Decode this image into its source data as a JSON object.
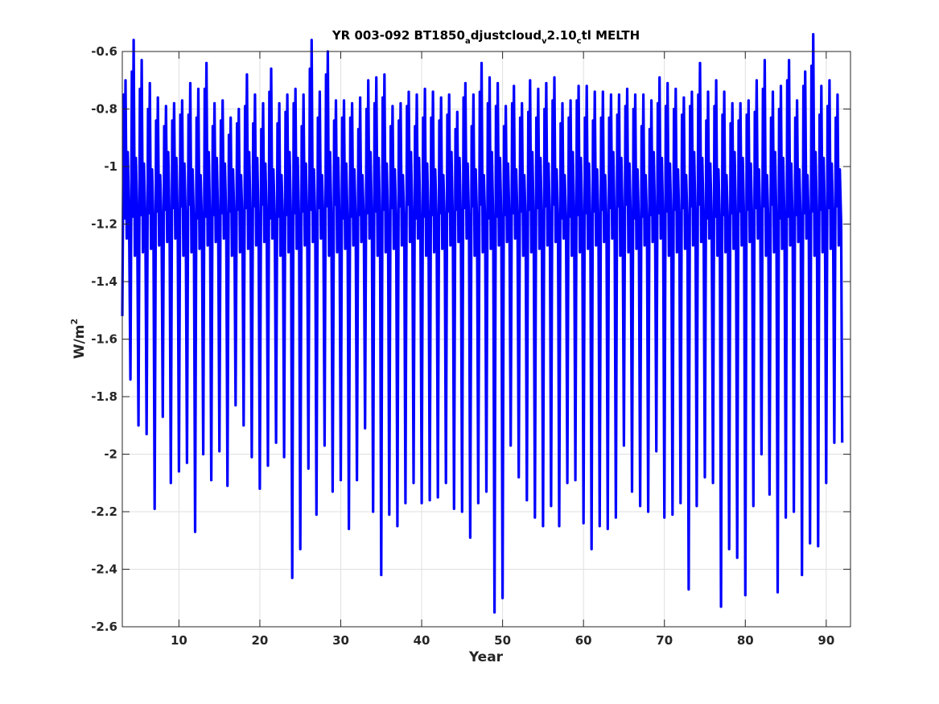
{
  "chart_data": {
    "type": "line",
    "title": {
      "part1": "YR 003-092 BT1850",
      "sub1": "a",
      "part2": "djustcloud",
      "sub2": "v",
      "part3": "2.10",
      "sub3": "c",
      "part4": "tl MELTH"
    },
    "xlabel": "Year",
    "ylabel": {
      "base": "W/m",
      "sup": "2"
    },
    "xlim": [
      3,
      93
    ],
    "ylim": [
      -2.6,
      -0.6
    ],
    "xticks": [
      10,
      20,
      30,
      40,
      50,
      60,
      70,
      80,
      90
    ],
    "xtick_labels": [
      "10",
      "20",
      "30",
      "40",
      "50",
      "60",
      "70",
      "80",
      "90"
    ],
    "yticks": [
      -2.6,
      -2.4,
      -2.2,
      -2.0,
      -1.8,
      -1.6,
      -1.4,
      -1.2,
      -1.0,
      -0.8,
      -0.6
    ],
    "ytick_labels": [
      "-2.6",
      "-2.4",
      "-2.2",
      "-2",
      "-1.8",
      "-1.6",
      "-1.4",
      "-1.2",
      "-1",
      "-0.8",
      "-0.6"
    ],
    "grid": true,
    "line_color": "#0000ff",
    "series": [
      {
        "description": "Monthly values, one annual cycle per year: summer minimum then winter peak",
        "start_year": 3,
        "annual_minima": [
          -1.52,
          -1.74,
          -1.9,
          -1.93,
          -2.19,
          -1.87,
          -2.1,
          -2.06,
          -2.03,
          -2.27,
          -2.0,
          -2.09,
          -1.99,
          -2.11,
          -1.83,
          -1.9,
          -2.01,
          -2.12,
          -2.04,
          -1.96,
          -2.01,
          -2.43,
          -2.33,
          -2.05,
          -2.21,
          -1.97,
          -2.13,
          -2.09,
          -2.26,
          -2.09,
          -1.91,
          -2.2,
          -2.42,
          -2.21,
          -2.25,
          -2.17,
          -2.1,
          -2.17,
          -2.16,
          -2.15,
          -2.1,
          -2.19,
          -2.2,
          -2.29,
          -2.17,
          -2.13,
          -2.55,
          -2.5,
          -1.97,
          -2.08,
          -2.16,
          -2.22,
          -2.25,
          -2.18,
          -2.25,
          -2.1,
          -2.09,
          -2.24,
          -2.33,
          -2.25,
          -2.26,
          -2.22,
          -1.97,
          -2.13,
          -2.18,
          -2.2,
          -1.99,
          -2.22,
          -2.21,
          -2.17,
          -2.47,
          -2.18,
          -2.08,
          -2.1,
          -2.53,
          -2.33,
          -2.36,
          -2.49,
          -2.18,
          -2.0,
          -2.14,
          -2.48,
          -2.22,
          -2.2,
          -2.42,
          -2.31,
          -2.32,
          -2.1,
          -1.96
        ],
        "annual_maxima": [
          -0.75,
          -0.67,
          -0.73,
          -0.8,
          -0.84,
          -0.86,
          -0.84,
          -0.82,
          -0.82,
          -0.83,
          -0.73,
          -0.86,
          -0.84,
          -0.89,
          -0.85,
          -0.79,
          -0.85,
          -0.87,
          -0.74,
          -0.85,
          -0.81,
          -0.78,
          -0.86,
          -0.66,
          -0.83,
          -0.68,
          -0.84,
          -0.83,
          -0.83,
          -0.87,
          -0.8,
          -0.78,
          -0.76,
          -0.86,
          -0.84,
          -0.79,
          -0.86,
          -0.83,
          -0.83,
          -0.84,
          -0.82,
          -0.87,
          -0.76,
          -0.86,
          -0.74,
          -0.78,
          -0.79,
          -0.86,
          -0.78,
          -0.83,
          -0.81,
          -0.83,
          -0.8,
          -0.77,
          -0.85,
          -0.83,
          -0.77,
          -0.83,
          -0.84,
          -0.83,
          -0.83,
          -0.82,
          -0.79,
          -0.8,
          -0.86,
          -0.87,
          -0.78,
          -0.79,
          -0.8,
          -0.82,
          -0.79,
          -0.75,
          -0.84,
          -0.79,
          -0.82,
          -0.85,
          -0.84,
          -0.82,
          -0.81,
          -0.73,
          -0.83,
          -0.8,
          -0.7,
          -0.83,
          -0.72,
          -0.65,
          -0.82,
          -0.79,
          -0.83
        ]
      }
    ]
  }
}
